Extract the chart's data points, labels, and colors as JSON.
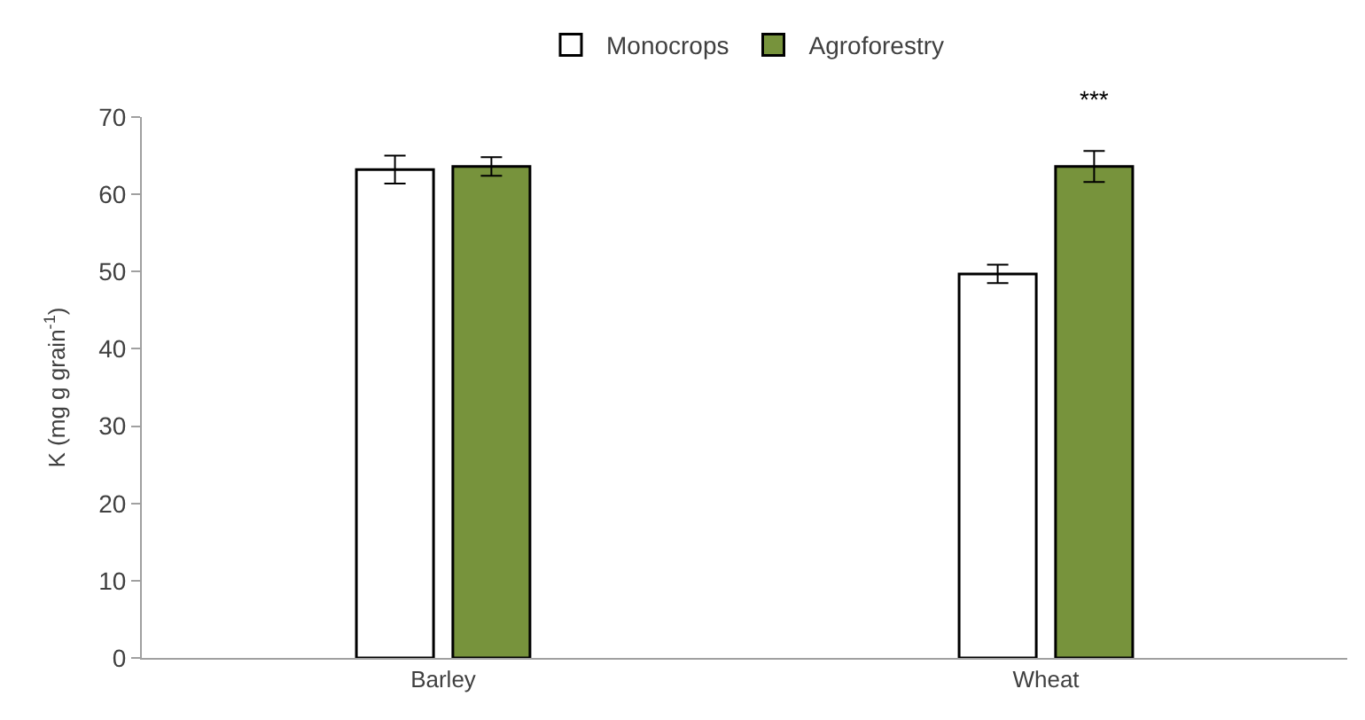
{
  "chart_data": {
    "type": "bar",
    "ylabel": "K (mg g grain$^{-1}$)",
    "categories": [
      "Barley",
      "Wheat"
    ],
    "series": [
      {
        "name": "Monocrops",
        "color": "#ffffff",
        "values": [
          63.2,
          49.7
        ],
        "errors": [
          1.8,
          1.2
        ]
      },
      {
        "name": "Agroforestry",
        "color": "#77933c",
        "values": [
          63.6,
          63.6
        ],
        "errors": [
          1.2,
          2.0
        ]
      }
    ],
    "annotations": [
      "***"
    ],
    "ylim": [
      0,
      70
    ],
    "yticks": [
      0,
      10,
      20,
      30,
      40,
      50,
      60,
      70
    ],
    "legend": "top"
  }
}
